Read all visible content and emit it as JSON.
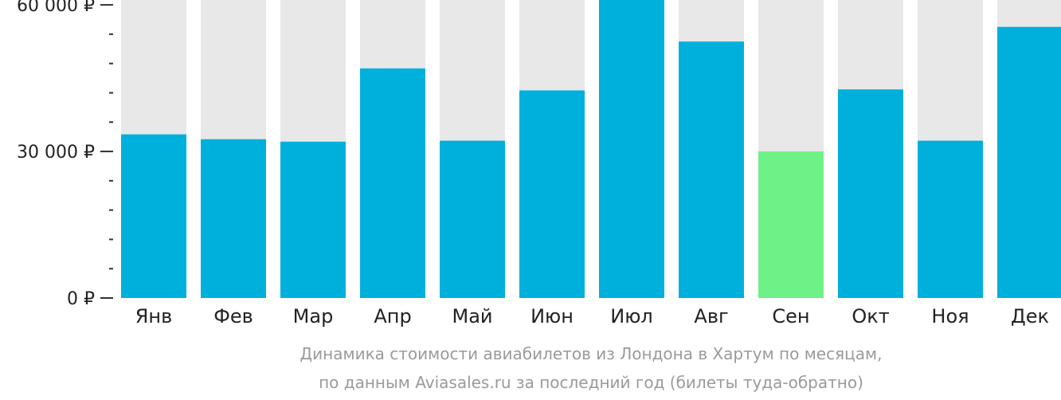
{
  "chart_data": {
    "type": "bar",
    "categories": [
      "Янв",
      "Фев",
      "Мар",
      "Апр",
      "Май",
      "Июн",
      "Июл",
      "Авг",
      "Сен",
      "Окт",
      "Ноя",
      "Дек"
    ],
    "values": [
      33500,
      32500,
      32000,
      47000,
      32200,
      42500,
      61000,
      52500,
      30000,
      42700,
      32200,
      55500
    ],
    "ylim": [
      0,
      61000
    ],
    "y_ticks": [
      {
        "value": 0,
        "label": "0 ₽"
      },
      {
        "value": 30000,
        "label": "30 000 ₽"
      },
      {
        "value": 60000,
        "label": "60 000 ₽"
      }
    ],
    "y_minor_step": 6000,
    "highlight_index": 8,
    "colors": {
      "bar": "#00b0dc",
      "highlight": "#6ef287",
      "background_column": "#e8e8e8",
      "axis": "#333333",
      "caption": "#9a9a9a"
    },
    "caption_lines": [
      "Динамика стоимости авиабилетов из Лондона в Хартум по месяцам,",
      "по данным Aviasales.ru за последний год (билеты туда-обратно)"
    ]
  }
}
